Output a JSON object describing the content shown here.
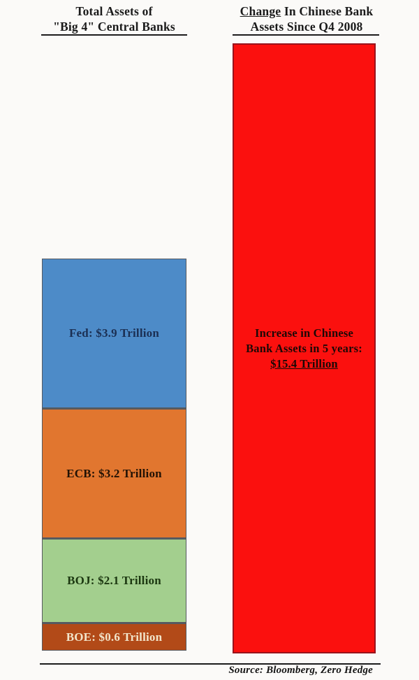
{
  "left_chart": {
    "title_line1": "Total Assets of",
    "title_line2": "\"Big 4\" Central Banks",
    "segments": [
      {
        "name": "Fed",
        "label": "Fed: $3.9 Trillion",
        "value_trillion_usd": 3.9,
        "color": "#4d8bc8",
        "text_color": "#1b2f53"
      },
      {
        "name": "ECB",
        "label": "ECB: $3.2 Trillion",
        "value_trillion_usd": 3.2,
        "color": "#e1762f",
        "text_color": "#221205"
      },
      {
        "name": "BOJ",
        "label": "BOJ: $2.1 Trillion",
        "value_trillion_usd": 2.1,
        "color": "#a3cf8e",
        "text_color": "#1b3710"
      },
      {
        "name": "BOE",
        "label": "BOE: $0.6 Trillion",
        "value_trillion_usd": 0.6,
        "color": "#b24a18",
        "text_color": "#f2e5cb"
      }
    ]
  },
  "right_chart": {
    "title_word_underlined": "Change",
    "title_line1_rest": " In Chinese Bank",
    "title_line2": "Assets Since Q4 2008",
    "bar_color": "#fb100e",
    "label_line1": "Increase in Chinese",
    "label_line2": "Bank Assets in 5 years:",
    "label_line3_underlined": "$15.4 Trillion",
    "value_trillion_usd": 15.4
  },
  "footer": {
    "source": "Source: Bloomberg, Zero Hedge"
  },
  "chart_data": {
    "type": "bar",
    "title_left": "Total Assets of \"Big 4\" Central Banks",
    "title_right": "Change In Chinese Bank Assets Since Q4 2008",
    "unit": "USD trillions",
    "bars": [
      {
        "name": "Big 4 Central Banks total assets",
        "style": "stacked",
        "segments": [
          {
            "label": "Fed",
            "value": 3.9
          },
          {
            "label": "ECB",
            "value": 3.2
          },
          {
            "label": "BOJ",
            "value": 2.1
          },
          {
            "label": "BOE",
            "value": 0.6
          }
        ],
        "total": 9.8
      },
      {
        "name": "Increase in Chinese Bank Assets in 5 years",
        "style": "single",
        "value": 15.4,
        "annotation": "Increase in Chinese Bank Assets in 5 years: $15.4 Trillion"
      }
    ],
    "axes": "none",
    "grid": false,
    "legend": "labels drawn inside bars",
    "source": "Source: Bloomberg, Zero Hedge"
  }
}
